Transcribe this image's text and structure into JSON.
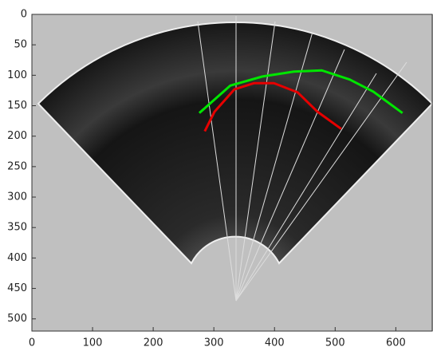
{
  "chart_data": {
    "type": "line",
    "xlim": [
      0,
      660
    ],
    "ylim": [
      0,
      520
    ],
    "y_direction": "reverse",
    "xticks": [
      0,
      100,
      200,
      300,
      400,
      500,
      600
    ],
    "yticks": [
      0,
      50,
      100,
      150,
      200,
      250,
      300,
      350,
      400,
      450,
      500
    ],
    "series": [
      {
        "color": "#00e600",
        "x": [
          276,
          327,
          380,
          432,
          478,
          524,
          563,
          611
        ],
        "values": [
          162,
          117,
          102,
          94,
          92,
          107,
          127,
          162
        ]
      },
      {
        "color": "#e60000",
        "x": [
          285,
          301,
          334,
          366,
          399,
          438,
          471,
          510
        ],
        "values": [
          192,
          160,
          123,
          113,
          113,
          128,
          160,
          188
        ]
      }
    ]
  }
}
